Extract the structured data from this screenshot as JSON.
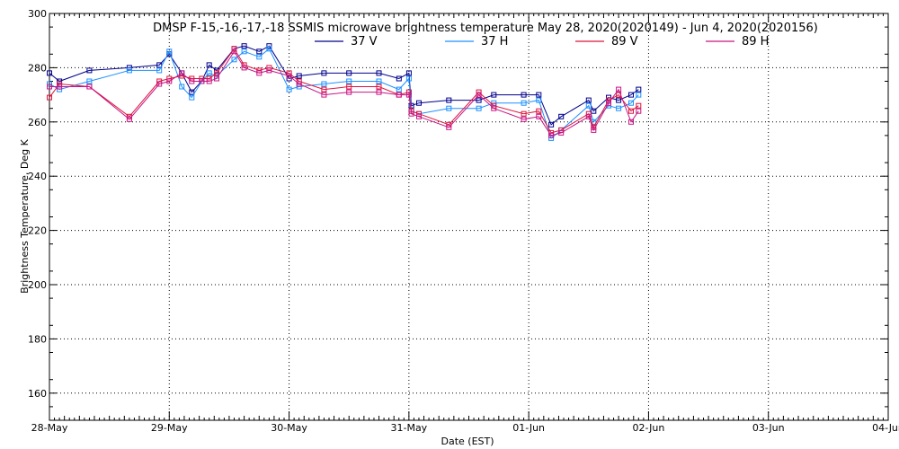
{
  "chart_data": {
    "type": "line",
    "title": "DMSP F-15,-16,-17,-18 SSMIS microwave brightness temperature May 28, 2020(2020149) - Jun  4, 2020(2020156)",
    "xlabel": "Date (EST)",
    "ylabel": "Brightness Temperature, Deg K",
    "xlim": [
      "2020-05-28T00:00",
      "2020-06-04T00:00"
    ],
    "ylim": [
      150,
      300
    ],
    "x_tick_labels": [
      "28-May",
      "29-May",
      "30-May",
      "31-May",
      "01-Jun",
      "02-Jun",
      "03-Jun",
      "04-Jun"
    ],
    "y_ticks": [
      160,
      180,
      200,
      220,
      240,
      260,
      280,
      300
    ],
    "grid": true,
    "legend": "top",
    "series": [
      {
        "name": "37 V",
        "color": "#00008b",
        "points": [
          [
            "2020-05-28T00:00",
            278
          ],
          [
            "2020-05-28T02:00",
            275
          ],
          [
            "2020-05-28T08:00",
            279
          ],
          [
            "2020-05-28T16:00",
            280
          ],
          [
            "2020-05-28T22:00",
            281
          ],
          [
            "2020-05-29T00:00",
            285
          ],
          [
            "2020-05-29T02:30",
            278
          ],
          [
            "2020-05-29T04:30",
            271
          ],
          [
            "2020-05-29T06:30",
            275
          ],
          [
            "2020-05-29T08:00",
            281
          ],
          [
            "2020-05-29T09:30",
            279
          ],
          [
            "2020-05-29T13:00",
            287
          ],
          [
            "2020-05-29T15:00",
            288
          ],
          [
            "2020-05-29T18:00",
            286
          ],
          [
            "2020-05-29T20:00",
            288
          ],
          [
            "2020-05-30T00:00",
            276
          ],
          [
            "2020-05-30T02:00",
            277
          ],
          [
            "2020-05-30T07:00",
            278
          ],
          [
            "2020-05-30T12:00",
            278
          ],
          [
            "2020-05-30T18:00",
            278
          ],
          [
            "2020-05-30T22:00",
            276
          ],
          [
            "2020-05-31T00:00",
            278
          ],
          [
            "2020-05-31T00:30",
            266
          ],
          [
            "2020-05-31T02:00",
            267
          ],
          [
            "2020-05-31T08:00",
            268
          ],
          [
            "2020-05-31T14:00",
            268
          ],
          [
            "2020-05-31T17:00",
            270
          ],
          [
            "2020-05-31T23:00",
            270
          ],
          [
            "2020-06-01T02:00",
            270
          ],
          [
            "2020-06-01T04:30",
            259
          ],
          [
            "2020-06-01T06:30",
            262
          ],
          [
            "2020-06-01T12:00",
            268
          ],
          [
            "2020-06-01T13:00",
            264
          ],
          [
            "2020-06-01T16:00",
            269
          ],
          [
            "2020-06-01T18:00",
            268
          ],
          [
            "2020-06-01T20:30",
            270
          ],
          [
            "2020-06-01T22:00",
            272
          ]
        ]
      },
      {
        "name": "37 H",
        "color": "#1e90ff",
        "points": [
          [
            "2020-05-28T00:00",
            274
          ],
          [
            "2020-05-28T02:00",
            272
          ],
          [
            "2020-05-28T08:00",
            275
          ],
          [
            "2020-05-28T16:00",
            279
          ],
          [
            "2020-05-28T22:00",
            279
          ],
          [
            "2020-05-29T00:00",
            286
          ],
          [
            "2020-05-29T02:30",
            273
          ],
          [
            "2020-05-29T04:30",
            269
          ],
          [
            "2020-05-29T06:30",
            275
          ],
          [
            "2020-05-29T08:00",
            278
          ],
          [
            "2020-05-29T09:30",
            277
          ],
          [
            "2020-05-29T13:00",
            283
          ],
          [
            "2020-05-29T15:00",
            286
          ],
          [
            "2020-05-29T18:00",
            284
          ],
          [
            "2020-05-29T20:00",
            287
          ],
          [
            "2020-05-30T00:00",
            272
          ],
          [
            "2020-05-30T02:00",
            273
          ],
          [
            "2020-05-30T07:00",
            274
          ],
          [
            "2020-05-30T12:00",
            275
          ],
          [
            "2020-05-30T18:00",
            275
          ],
          [
            "2020-05-30T22:00",
            272
          ],
          [
            "2020-05-31T00:00",
            276
          ],
          [
            "2020-05-31T00:30",
            264
          ],
          [
            "2020-05-31T02:00",
            263
          ],
          [
            "2020-05-31T08:00",
            265
          ],
          [
            "2020-05-31T14:00",
            265
          ],
          [
            "2020-05-31T17:00",
            267
          ],
          [
            "2020-05-31T23:00",
            267
          ],
          [
            "2020-06-01T02:00",
            268
          ],
          [
            "2020-06-01T04:30",
            254
          ],
          [
            "2020-06-01T06:30",
            257
          ],
          [
            "2020-06-01T12:00",
            266
          ],
          [
            "2020-06-01T13:00",
            260
          ],
          [
            "2020-06-01T16:00",
            266
          ],
          [
            "2020-06-01T18:00",
            265
          ],
          [
            "2020-06-01T20:30",
            267
          ],
          [
            "2020-06-01T22:00",
            270
          ]
        ]
      },
      {
        "name": "89 V",
        "color": "#dc143c",
        "points": [
          [
            "2020-05-28T00:00",
            269
          ],
          [
            "2020-05-28T02:00",
            274
          ],
          [
            "2020-05-28T08:00",
            273
          ],
          [
            "2020-05-28T16:00",
            262
          ],
          [
            "2020-05-28T22:00",
            275
          ],
          [
            "2020-05-29T00:00",
            276
          ],
          [
            "2020-05-29T02:30",
            277
          ],
          [
            "2020-05-29T04:30",
            276
          ],
          [
            "2020-05-29T06:30",
            276
          ],
          [
            "2020-05-29T08:00",
            276
          ],
          [
            "2020-05-29T09:30",
            278
          ],
          [
            "2020-05-29T13:00",
            287
          ],
          [
            "2020-05-29T15:00",
            281
          ],
          [
            "2020-05-29T18:00",
            279
          ],
          [
            "2020-05-29T20:00",
            280
          ],
          [
            "2020-05-30T00:00",
            278
          ],
          [
            "2020-05-30T02:00",
            275
          ],
          [
            "2020-05-30T07:00",
            272
          ],
          [
            "2020-05-30T12:00",
            273
          ],
          [
            "2020-05-30T18:00",
            273
          ],
          [
            "2020-05-30T22:00",
            270
          ],
          [
            "2020-05-31T00:00",
            271
          ],
          [
            "2020-05-31T00:30",
            264
          ],
          [
            "2020-05-31T02:00",
            263
          ],
          [
            "2020-05-31T08:00",
            259
          ],
          [
            "2020-05-31T14:00",
            271
          ],
          [
            "2020-05-31T17:00",
            266
          ],
          [
            "2020-05-31T23:00",
            263
          ],
          [
            "2020-06-01T02:00",
            264
          ],
          [
            "2020-06-01T04:30",
            256
          ],
          [
            "2020-06-01T06:30",
            257
          ],
          [
            "2020-06-01T12:00",
            263
          ],
          [
            "2020-06-01T13:00",
            258
          ],
          [
            "2020-06-01T16:00",
            268
          ],
          [
            "2020-06-01T18:00",
            270
          ],
          [
            "2020-06-01T20:30",
            264
          ],
          [
            "2020-06-01T22:00",
            266
          ]
        ]
      },
      {
        "name": "89 H",
        "color": "#c71585",
        "points": [
          [
            "2020-05-28T00:00",
            273
          ],
          [
            "2020-05-28T02:00",
            273
          ],
          [
            "2020-05-28T08:00",
            273
          ],
          [
            "2020-05-28T16:00",
            261
          ],
          [
            "2020-05-28T22:00",
            274
          ],
          [
            "2020-05-29T00:00",
            275
          ],
          [
            "2020-05-29T02:30",
            278
          ],
          [
            "2020-05-29T04:30",
            275
          ],
          [
            "2020-05-29T06:30",
            275
          ],
          [
            "2020-05-29T08:00",
            275
          ],
          [
            "2020-05-29T09:30",
            276
          ],
          [
            "2020-05-29T13:00",
            286
          ],
          [
            "2020-05-29T15:00",
            280
          ],
          [
            "2020-05-29T18:00",
            278
          ],
          [
            "2020-05-29T20:00",
            279
          ],
          [
            "2020-05-30T00:00",
            277
          ],
          [
            "2020-05-30T02:00",
            274
          ],
          [
            "2020-05-30T07:00",
            270
          ],
          [
            "2020-05-30T12:00",
            271
          ],
          [
            "2020-05-30T18:00",
            271
          ],
          [
            "2020-05-30T22:00",
            270
          ],
          [
            "2020-05-31T00:00",
            270
          ],
          [
            "2020-05-31T00:30",
            263
          ],
          [
            "2020-05-31T02:00",
            262
          ],
          [
            "2020-05-31T08:00",
            258
          ],
          [
            "2020-05-31T14:00",
            270
          ],
          [
            "2020-05-31T17:00",
            265
          ],
          [
            "2020-05-31T23:00",
            261
          ],
          [
            "2020-06-01T02:00",
            262
          ],
          [
            "2020-06-01T04:30",
            255
          ],
          [
            "2020-06-01T06:30",
            256
          ],
          [
            "2020-06-01T12:00",
            262
          ],
          [
            "2020-06-01T13:00",
            257
          ],
          [
            "2020-06-01T16:00",
            267
          ],
          [
            "2020-06-01T18:00",
            272
          ],
          [
            "2020-06-01T20:30",
            260
          ],
          [
            "2020-06-01T22:00",
            264
          ]
        ]
      }
    ]
  }
}
